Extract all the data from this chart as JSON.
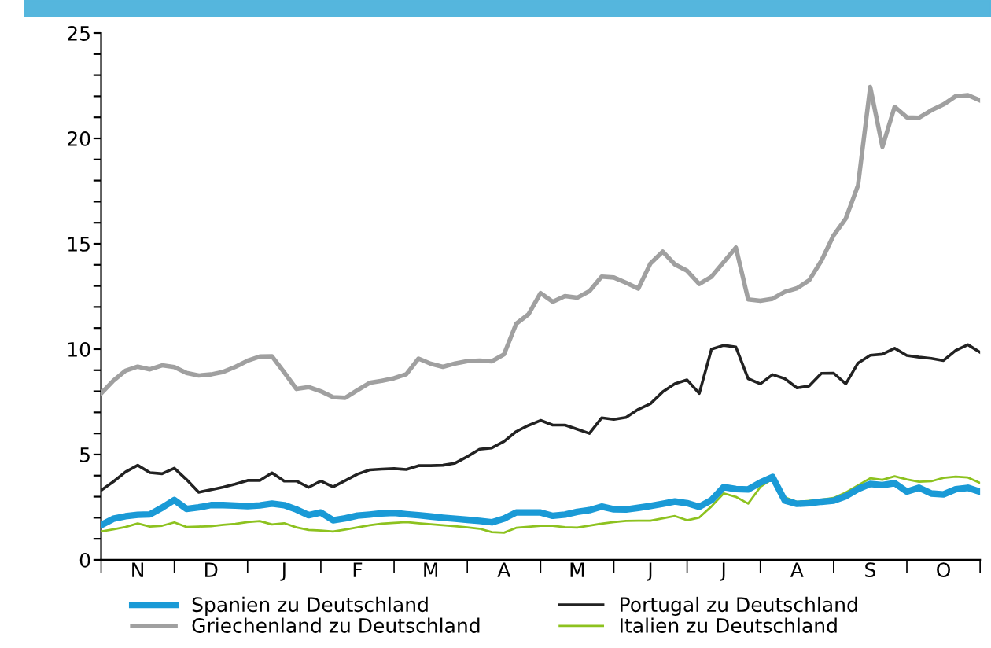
{
  "chart_data": {
    "type": "line",
    "ylim": [
      0,
      25
    ],
    "categories": [
      null,
      null,
      null,
      "N",
      null,
      null,
      null,
      null,
      null,
      "D",
      null,
      null,
      null,
      null,
      null,
      "J",
      null,
      null,
      null,
      null,
      null,
      "F",
      null,
      null,
      null,
      null,
      null,
      "M",
      null,
      null,
      null,
      null,
      null,
      "A",
      null,
      null,
      null,
      null,
      null,
      "M",
      null,
      null,
      null,
      null,
      null,
      "J",
      null,
      null,
      null,
      null,
      null,
      "J",
      null,
      null,
      null,
      null,
      null,
      "A",
      null,
      null,
      null,
      null,
      null,
      "S",
      null,
      null,
      null,
      null,
      null,
      "O",
      null,
      null,
      null
    ],
    "yticks": [
      0,
      {
        "value": 1,
        "label": null
      },
      {
        "value": 2,
        "label": null
      },
      {
        "value": 3,
        "label": null
      },
      {
        "value": 4,
        "label": null
      },
      5,
      {
        "value": 6,
        "label": null
      },
      {
        "value": 7,
        "label": null
      },
      {
        "value": 8,
        "label": null
      },
      {
        "value": 9,
        "label": null
      },
      10,
      {
        "value": 11,
        "label": null
      },
      {
        "value": 12,
        "label": null
      },
      {
        "value": 13,
        "label": null
      },
      {
        "value": 14,
        "label": null
      },
      15,
      {
        "value": 16,
        "label": null
      },
      {
        "value": 17,
        "label": null
      },
      {
        "value": 18,
        "label": null
      },
      {
        "value": 19,
        "label": null
      },
      20,
      {
        "value": 21,
        "label": null
      },
      {
        "value": 22,
        "label": null
      },
      {
        "value": 23,
        "label": null
      },
      {
        "value": 24,
        "label": null
      },
      25
    ],
    "grid": false,
    "legend": "bottom",
    "marker": "none",
    "line_style": "solid",
    "series": [
      {
        "name": "Spanien zu Deutschland",
        "color": "#1a9ad6",
        "values": [
          1.65,
          1.95,
          2.07,
          2.14,
          2.16,
          2.48,
          2.84,
          2.42,
          2.49,
          2.6,
          2.6,
          2.58,
          2.55,
          2.59,
          2.67,
          2.6,
          2.39,
          2.12,
          2.25,
          1.88,
          1.97,
          2.1,
          2.15,
          2.21,
          2.23,
          2.17,
          2.12,
          2.06,
          2.0,
          1.95,
          1.9,
          1.85,
          1.78,
          1.96,
          2.25,
          2.25,
          2.25,
          2.09,
          2.15,
          2.28,
          2.36,
          2.53,
          2.4,
          2.39,
          2.47,
          2.56,
          2.66,
          2.77,
          2.69,
          2.52,
          2.84,
          3.45,
          3.36,
          3.34,
          3.67,
          3.93,
          2.82,
          2.66,
          2.69,
          2.76,
          2.81,
          3.02,
          3.36,
          3.6,
          3.55,
          3.64,
          3.24,
          3.42,
          3.15,
          3.11,
          3.35,
          3.42,
          3.23
        ]
      },
      {
        "name": "Griechenland zu Deutschland",
        "color": "#a0a0a0",
        "values": [
          7.9,
          8.5,
          8.98,
          9.17,
          9.04,
          9.23,
          9.15,
          8.87,
          8.75,
          8.8,
          8.92,
          9.16,
          9.45,
          9.65,
          9.66,
          8.9,
          8.11,
          8.2,
          8.0,
          7.72,
          7.69,
          8.05,
          8.4,
          8.5,
          8.62,
          8.81,
          9.55,
          9.31,
          9.16,
          9.32,
          9.43,
          9.46,
          9.42,
          9.75,
          11.2,
          11.65,
          12.66,
          12.25,
          12.52,
          12.44,
          12.75,
          13.44,
          13.4,
          13.15,
          12.87,
          14.07,
          14.63,
          14.02,
          13.72,
          13.09,
          13.44,
          14.13,
          14.82,
          12.36,
          12.29,
          12.39,
          12.72,
          12.89,
          13.27,
          14.2,
          15.4,
          16.2,
          17.77,
          22.44,
          19.6,
          21.5,
          21.0,
          20.98,
          21.33,
          21.61,
          22.0,
          22.05,
          21.8
        ]
      },
      {
        "name": "Portugal zu Deutschland",
        "color": "#222222",
        "values": [
          3.3,
          3.71,
          4.17,
          4.49,
          4.14,
          4.09,
          4.35,
          3.81,
          3.21,
          3.33,
          3.45,
          3.6,
          3.77,
          3.77,
          4.13,
          3.74,
          3.74,
          3.44,
          3.74,
          3.46,
          3.76,
          4.07,
          4.27,
          4.31,
          4.33,
          4.29,
          4.47,
          4.47,
          4.49,
          4.59,
          4.9,
          5.25,
          5.31,
          5.62,
          6.09,
          6.38,
          6.62,
          6.4,
          6.4,
          6.2,
          6.0,
          6.74,
          6.67,
          6.76,
          7.14,
          7.41,
          7.97,
          8.36,
          8.54,
          7.9,
          10.0,
          10.18,
          10.1,
          8.6,
          8.35,
          8.79,
          8.6,
          8.16,
          8.25,
          8.85,
          8.86,
          8.35,
          9.34,
          9.71,
          9.76,
          10.04,
          9.7,
          9.62,
          9.56,
          9.46,
          9.94,
          10.21,
          9.85
        ]
      },
      {
        "name": "Italien zu Deutschland",
        "color": "#8dc21f",
        "values": [
          1.35,
          1.45,
          1.56,
          1.73,
          1.58,
          1.62,
          1.78,
          1.56,
          1.58,
          1.6,
          1.66,
          1.71,
          1.79,
          1.84,
          1.68,
          1.74,
          1.54,
          1.42,
          1.39,
          1.35,
          1.44,
          1.54,
          1.64,
          1.72,
          1.76,
          1.79,
          1.74,
          1.69,
          1.64,
          1.6,
          1.54,
          1.48,
          1.32,
          1.29,
          1.52,
          1.57,
          1.62,
          1.62,
          1.55,
          1.53,
          1.63,
          1.72,
          1.79,
          1.85,
          1.86,
          1.86,
          1.97,
          2.08,
          1.88,
          2.01,
          2.54,
          3.16,
          2.99,
          2.67,
          3.46,
          3.86,
          2.97,
          2.75,
          2.8,
          2.86,
          2.94,
          3.2,
          3.54,
          3.87,
          3.8,
          3.97,
          3.82,
          3.71,
          3.73,
          3.89,
          3.95,
          3.91,
          3.65
        ]
      }
    ]
  }
}
